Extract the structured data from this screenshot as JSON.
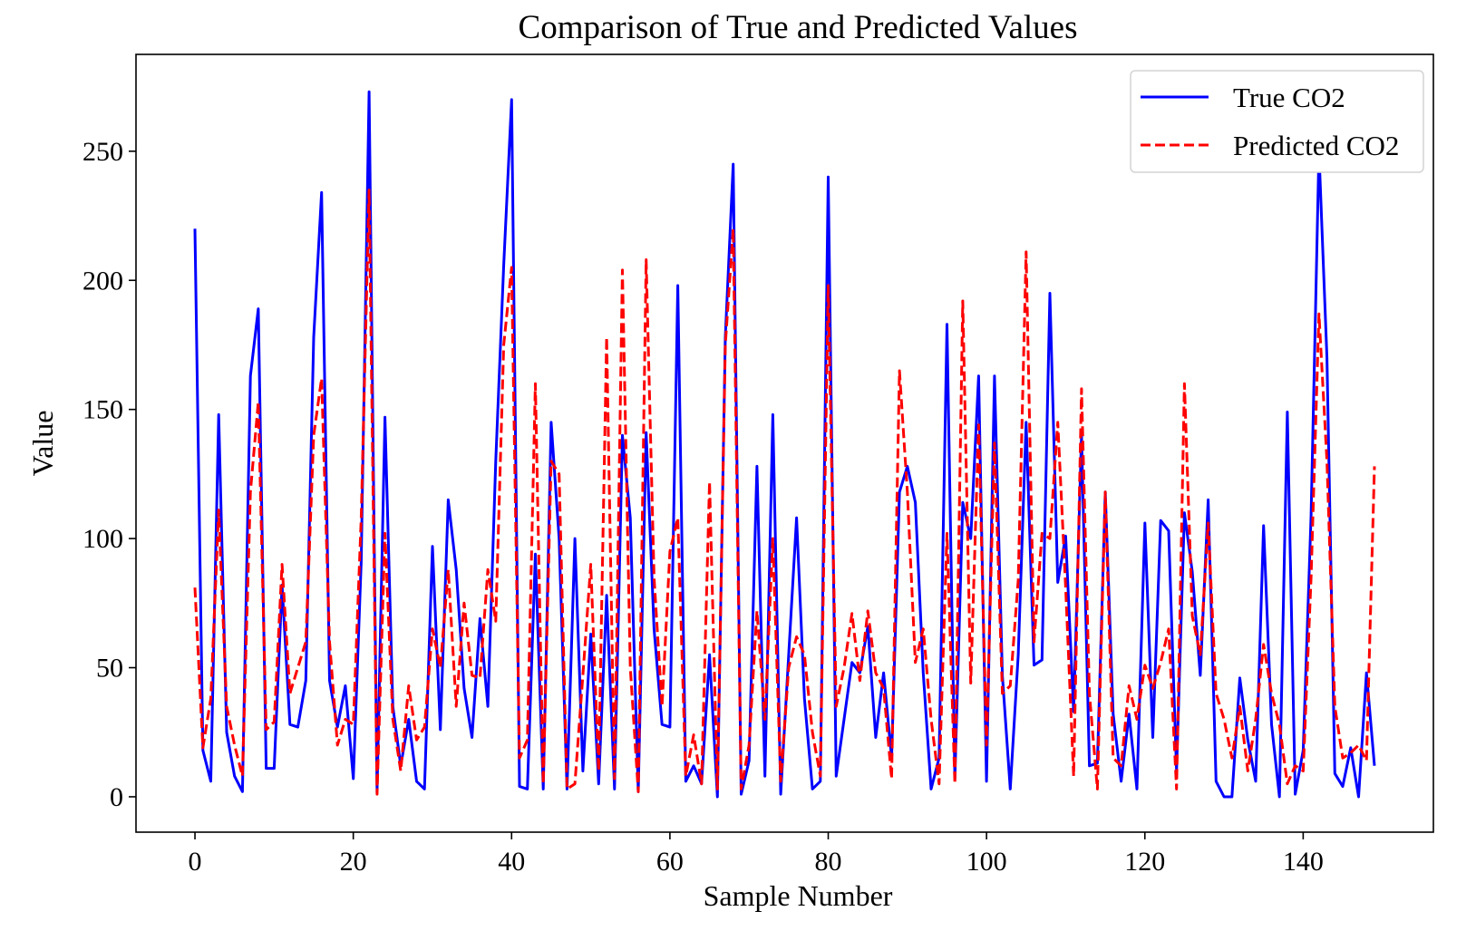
{
  "chart_data": {
    "type": "line",
    "title": "Comparison of True and Predicted Values",
    "xlabel": "Sample Number",
    "ylabel": "Value",
    "xlim": [
      -7.45,
      156.45
    ],
    "ylim": [
      -13.7,
      287.5
    ],
    "xticks": [
      0,
      20,
      40,
      60,
      80,
      100,
      120,
      140
    ],
    "yticks": [
      0,
      50,
      100,
      150,
      200,
      250
    ],
    "grid": false,
    "legend_position": "top-right",
    "series": [
      {
        "name": "True CO2",
        "color": "#0000ff",
        "style": "solid",
        "values": [
          220,
          18,
          6,
          148,
          25,
          8,
          2,
          163,
          189,
          11,
          11,
          82,
          28,
          27,
          45,
          178,
          234,
          45,
          27,
          43,
          7,
          91,
          273,
          2,
          147,
          35,
          12,
          30,
          6,
          3,
          97,
          26,
          115,
          88,
          42,
          23,
          69,
          35,
          130,
          206,
          270,
          4,
          3,
          94,
          3,
          145,
          100,
          3,
          100,
          10,
          63,
          5,
          78,
          3,
          140,
          108,
          2,
          141,
          65,
          28,
          27,
          198,
          6,
          12,
          5,
          55,
          0,
          178,
          245,
          1,
          14,
          128,
          8,
          148,
          1,
          55,
          108,
          38,
          3,
          6,
          240,
          8,
          30,
          52,
          48,
          66,
          23,
          48,
          15,
          118,
          128,
          114,
          48,
          3,
          15,
          183,
          7,
          114,
          100,
          163,
          6,
          163,
          47,
          3,
          55,
          145,
          51,
          53,
          195,
          83,
          101,
          33,
          140,
          12,
          13,
          118,
          32,
          6,
          32,
          3,
          106,
          23,
          107,
          103,
          10,
          110,
          87,
          47,
          115,
          6,
          0,
          0,
          46,
          22,
          6,
          105,
          28,
          0,
          149,
          1,
          18,
          109,
          250,
          170,
          9,
          4,
          19,
          0,
          48,
          12
        ]
      },
      {
        "name": "Predicted CO2",
        "color": "#ff0000",
        "style": "dashed",
        "values": [
          81,
          19,
          38,
          111,
          35,
          20,
          8,
          118,
          153,
          26,
          29,
          90,
          40,
          50,
          60,
          140,
          162,
          60,
          20,
          30,
          28,
          108,
          235,
          1,
          102,
          30,
          10,
          43,
          22,
          27,
          65,
          50,
          88,
          35,
          75,
          47,
          46,
          88,
          68,
          175,
          205,
          15,
          22,
          160,
          5,
          130,
          125,
          3,
          5,
          47,
          90,
          10,
          178,
          7,
          204,
          50,
          2,
          208,
          85,
          35,
          95,
          108,
          8,
          24,
          5,
          122,
          3,
          175,
          220,
          3,
          20,
          72,
          30,
          100,
          6,
          50,
          62,
          55,
          25,
          8,
          198,
          35,
          50,
          71,
          45,
          72,
          48,
          42,
          7,
          165,
          118,
          52,
          65,
          30,
          5,
          102,
          5,
          192,
          44,
          144,
          20,
          137,
          40,
          43,
          84,
          211,
          60,
          102,
          100,
          145,
          81,
          8,
          158,
          40,
          3,
          118,
          15,
          12,
          43,
          30,
          51,
          42,
          52,
          65,
          3,
          160,
          70,
          55,
          106,
          40,
          30,
          15,
          35,
          10,
          30,
          59,
          40,
          28,
          5,
          12,
          10,
          85,
          187,
          130,
          35,
          15,
          17,
          20,
          14,
          128
        ]
      }
    ]
  }
}
